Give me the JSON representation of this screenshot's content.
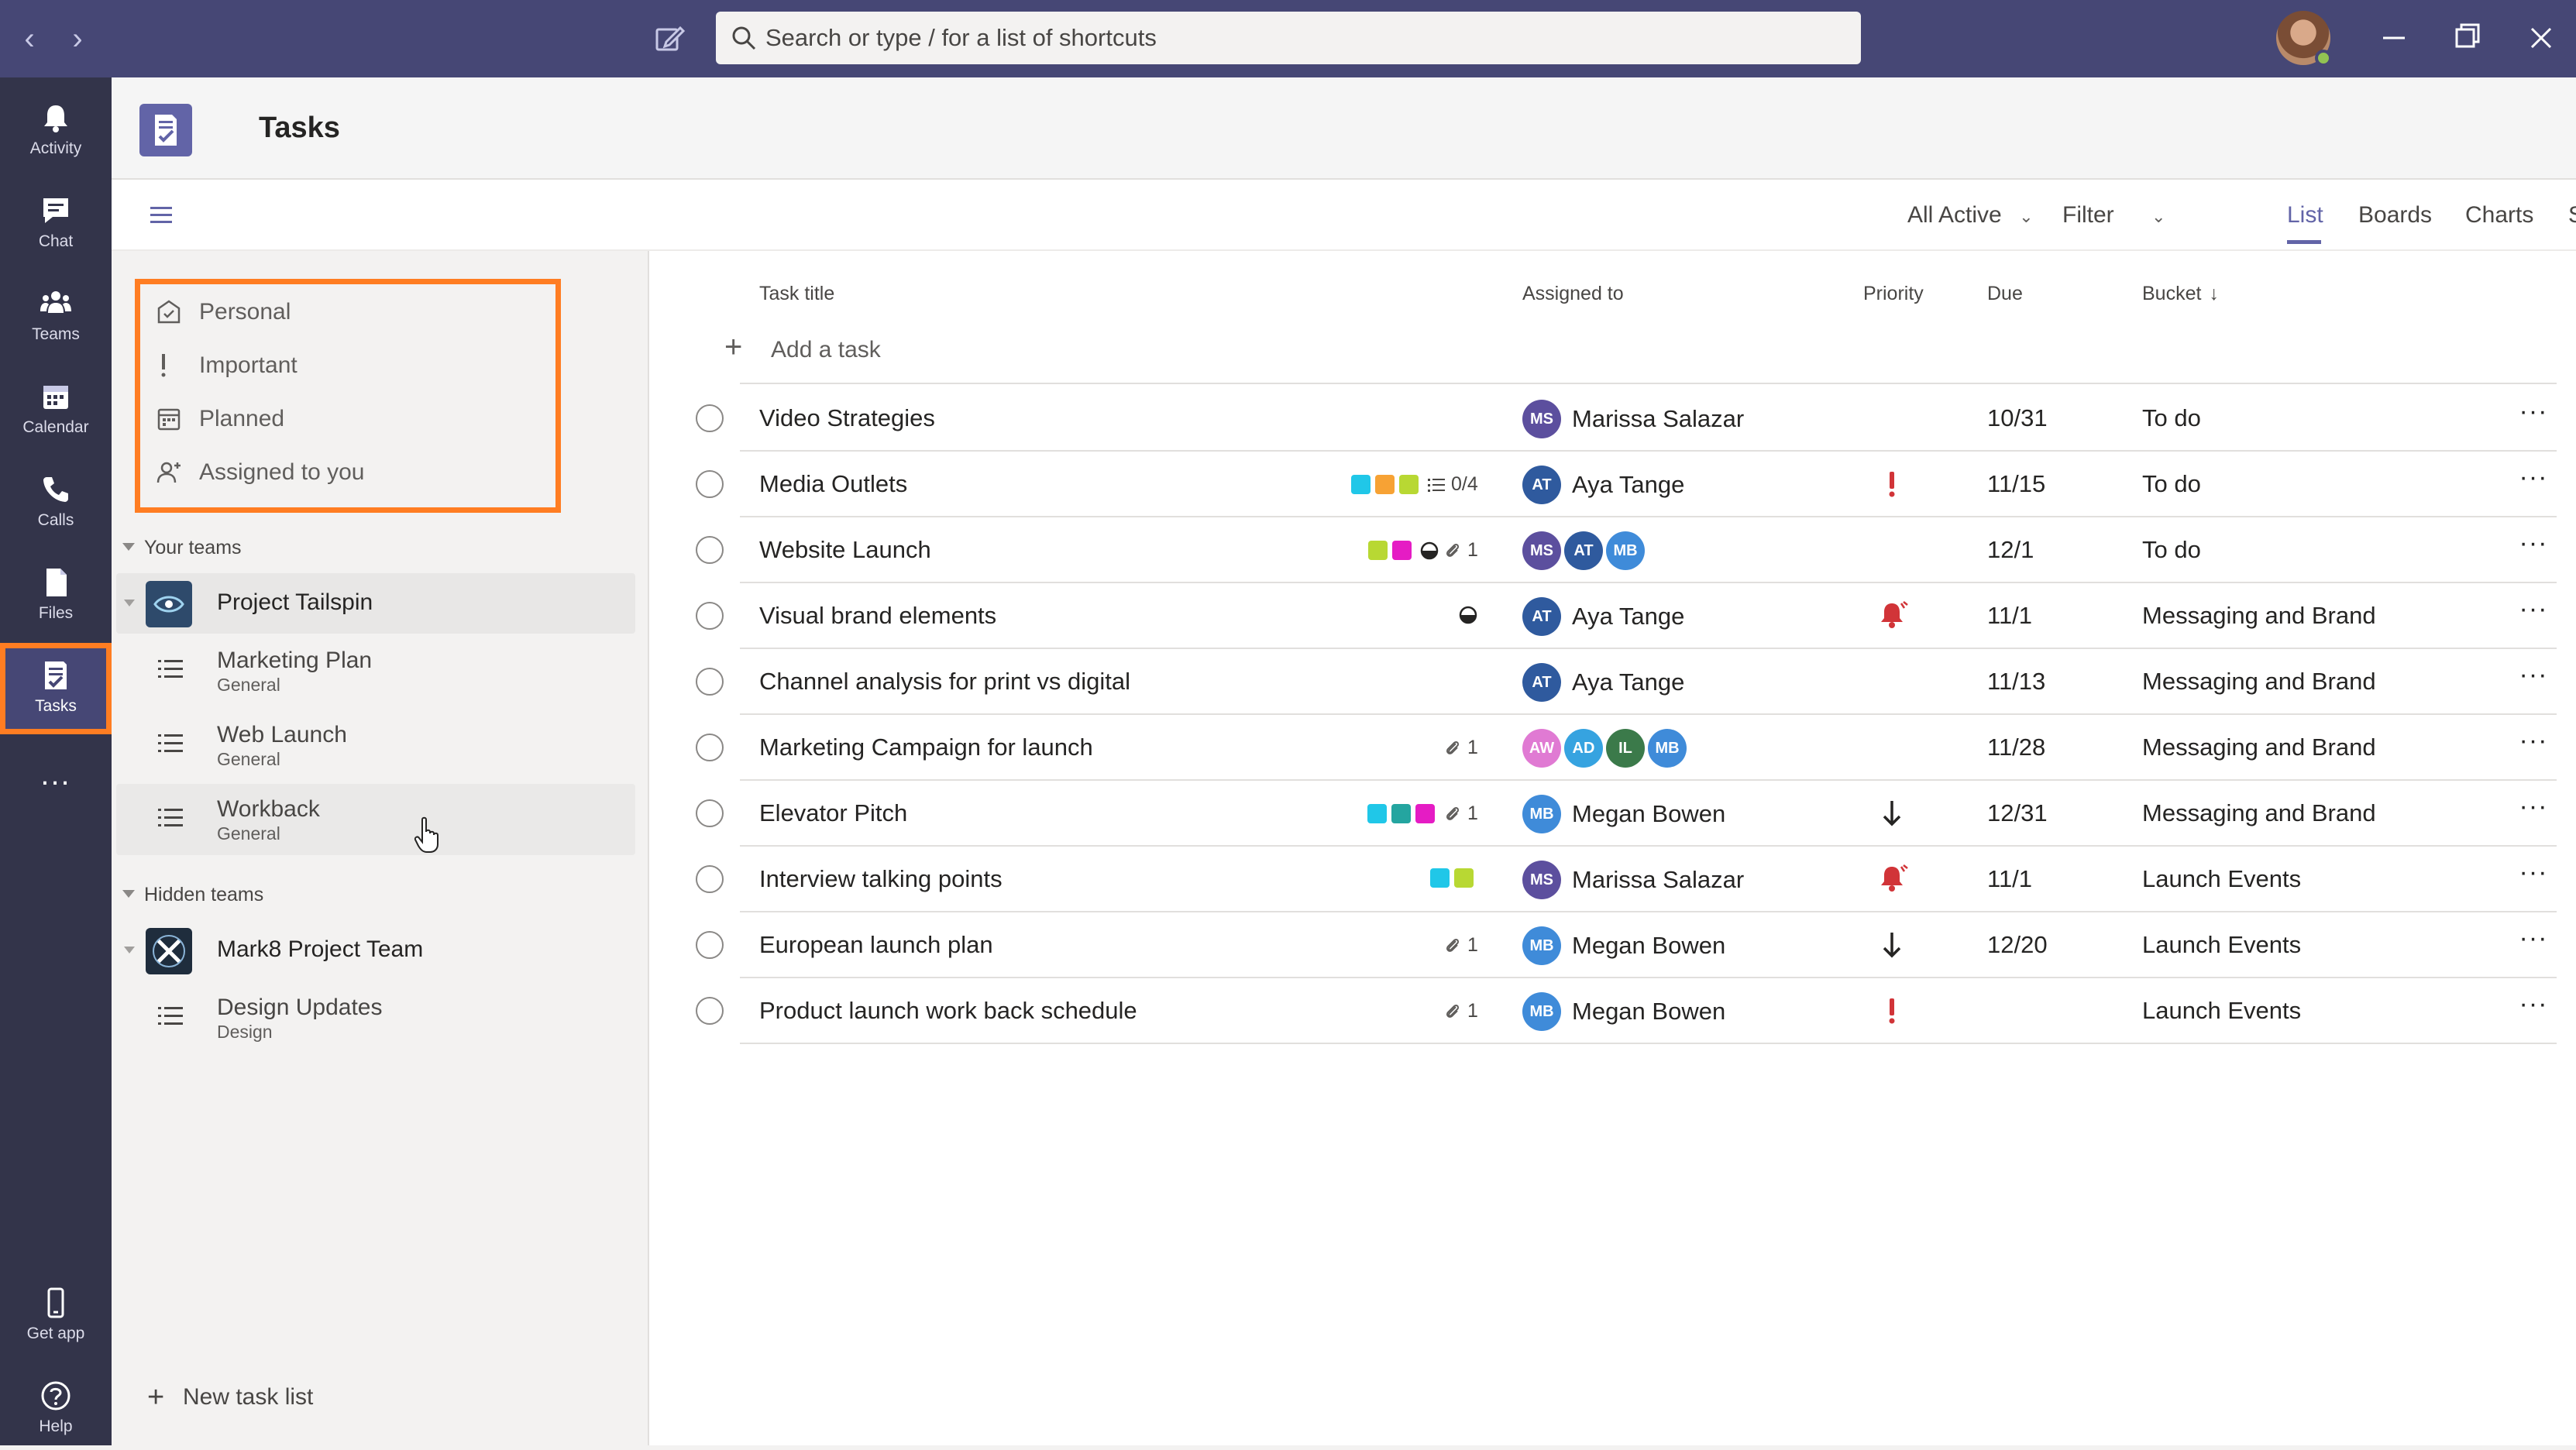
{
  "search": {
    "placeholder": "Search or type / for a list of shortcuts"
  },
  "rail": {
    "items": [
      {
        "label": "Activity",
        "icon": "bell-icon"
      },
      {
        "label": "Chat",
        "icon": "chat-icon"
      },
      {
        "label": "Teams",
        "icon": "teams-icon"
      },
      {
        "label": "Calendar",
        "icon": "calendar-icon"
      },
      {
        "label": "Calls",
        "icon": "phone-icon"
      },
      {
        "label": "Files",
        "icon": "file-icon"
      },
      {
        "label": "Tasks",
        "icon": "tasks-icon",
        "active": true
      }
    ],
    "more": "...",
    "bottom": [
      {
        "label": "Get app",
        "icon": "phone-device-icon"
      },
      {
        "label": "Help",
        "icon": "help-icon"
      }
    ]
  },
  "app": {
    "title": "Tasks"
  },
  "toolbar": {
    "filter_scope": "All Active",
    "filter": "Filter",
    "views": [
      "List",
      "Boards",
      "Charts",
      "Schedule"
    ],
    "active_view": "List"
  },
  "leftpane": {
    "smart_lists": [
      "Personal",
      "Important",
      "Planned",
      "Assigned to you"
    ],
    "your_teams_label": "Your teams",
    "hidden_teams_label": "Hidden teams",
    "teams": [
      {
        "name": "Project Tailspin",
        "lists": [
          {
            "name": "Marketing Plan",
            "channel": "General"
          },
          {
            "name": "Web Launch",
            "channel": "General"
          },
          {
            "name": "Workback",
            "channel": "General"
          }
        ]
      }
    ],
    "hidden": [
      {
        "name": "Mark8 Project Team",
        "lists": [
          {
            "name": "Design Updates",
            "channel": "Design"
          }
        ]
      }
    ],
    "new_list": "New task list"
  },
  "table": {
    "headers": {
      "title": "Task title",
      "assigned": "Assigned to",
      "priority": "Priority",
      "due": "Due",
      "bucket": "Bucket"
    },
    "add_task": "Add a task",
    "colors": {
      "ms": "#5c4f9e",
      "at": "#2f5a9e",
      "mb": "#3f8bd9",
      "aw": "#e07ad3",
      "ad": "#36a3e0",
      "il": "#3b7a4a",
      "urgent": "#d13438",
      "label_cyan": "#20c7e8",
      "label_orange": "#f7a234",
      "label_lime": "#b8d833",
      "label_magenta": "#e51cc4",
      "label_teal": "#24a5a0"
    },
    "rows": [
      {
        "title": "Video Strategies",
        "avatars": [
          "MS"
        ],
        "assignee": "Marissa Salazar",
        "priority": "",
        "due": "10/31",
        "bucket": "To do",
        "labels": [],
        "extra": ""
      },
      {
        "title": "Media Outlets",
        "avatars": [
          "AT"
        ],
        "assignee": "Aya Tange",
        "priority": "important",
        "due": "11/15",
        "bucket": "To do",
        "labels": [
          "cyan",
          "orange",
          "lime"
        ],
        "extra": "0/4"
      },
      {
        "title": "Website Launch",
        "avatars": [
          "MS",
          "AT",
          "MB"
        ],
        "assignee": "",
        "priority": "",
        "due": "12/1",
        "bucket": "To do",
        "labels": [
          "lime",
          "magenta"
        ],
        "extra": "1"
      },
      {
        "title": "Visual brand elements",
        "avatars": [
          "AT"
        ],
        "assignee": "Aya Tange",
        "priority": "urgent",
        "due": "11/1",
        "bucket": "Messaging and Brand",
        "labels": [],
        "extra": ""
      },
      {
        "title": "Channel analysis for print vs digital",
        "avatars": [
          "AT"
        ],
        "assignee": "Aya Tange",
        "priority": "",
        "due": "11/13",
        "bucket": "Messaging and Brand",
        "labels": [],
        "extra": ""
      },
      {
        "title": "Marketing Campaign for launch",
        "avatars": [
          "AW",
          "AD",
          "IL",
          "MB"
        ],
        "assignee": "",
        "priority": "",
        "due": "11/28",
        "bucket": "Messaging and Brand",
        "labels": [],
        "extra": "1"
      },
      {
        "title": "Elevator Pitch",
        "avatars": [
          "MB"
        ],
        "assignee": "Megan Bowen",
        "priority": "low",
        "due": "12/31",
        "bucket": "Messaging and Brand",
        "labels": [
          "cyan",
          "teal",
          "magenta"
        ],
        "extra": "1"
      },
      {
        "title": "Interview talking points",
        "avatars": [
          "MS"
        ],
        "assignee": "Marissa Salazar",
        "priority": "urgent",
        "due": "11/1",
        "bucket": "Launch Events",
        "labels": [
          "cyan",
          "lime"
        ],
        "extra": ""
      },
      {
        "title": "European launch plan",
        "avatars": [
          "MB"
        ],
        "assignee": "Megan Bowen",
        "priority": "low",
        "due": "12/20",
        "bucket": "Launch Events",
        "labels": [],
        "extra": "1"
      },
      {
        "title": "Product launch work back schedule",
        "avatars": [
          "MB"
        ],
        "assignee": "Megan Bowen",
        "priority": "important",
        "due": "",
        "bucket": "Launch Events",
        "labels": [],
        "extra": "1"
      }
    ]
  }
}
